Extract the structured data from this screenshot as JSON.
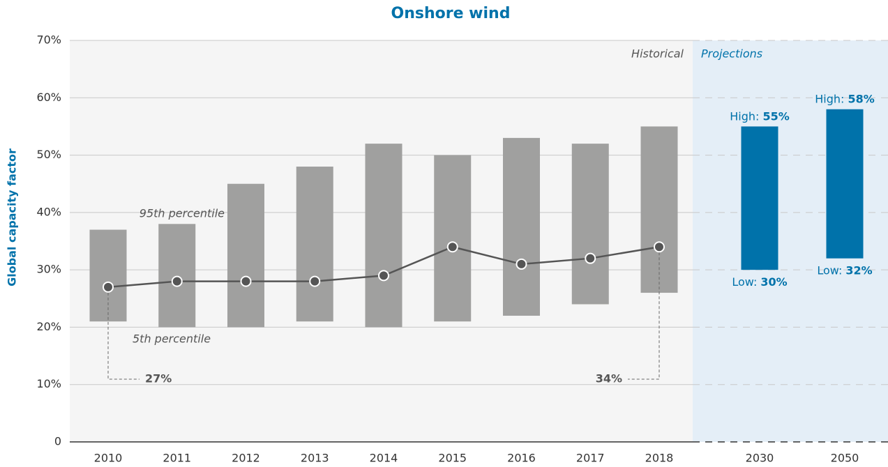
{
  "chart_data": {
    "type": "range_bar",
    "title": "Onshore wind",
    "y_label": "Global capacity factor",
    "ylim": [
      0,
      70
    ],
    "yticks": [
      0,
      {
        "value": 10,
        "label": "10%"
      },
      {
        "value": 20,
        "label": "20%"
      },
      {
        "value": 30,
        "label": "30%"
      },
      {
        "value": 40,
        "label": "40%"
      },
      {
        "value": 50,
        "label": "50%"
      },
      {
        "value": 60,
        "label": "60%"
      },
      {
        "value": 70,
        "label": "70%"
      }
    ],
    "grid": true,
    "historical": {
      "label": "Historical",
      "categories": [
        "2010",
        "2011",
        "2012",
        "2013",
        "2014",
        "2015",
        "2016",
        "2017",
        "2018"
      ],
      "low": [
        21,
        20,
        20,
        21,
        20,
        21,
        22,
        24,
        26
      ],
      "high": [
        37,
        38,
        45,
        48,
        52,
        50,
        53,
        52,
        55
      ],
      "average": [
        27,
        28,
        28,
        28,
        29,
        34,
        31,
        32,
        34
      ],
      "average_labels": [
        "27%",
        null,
        null,
        null,
        null,
        null,
        null,
        null,
        "34%"
      ],
      "low_label": "5th percentile",
      "high_label": "95th percentile",
      "bar_color": "#a0a09f",
      "line_color": "#555555"
    },
    "projections": {
      "label": "Projections",
      "categories": [
        "2030",
        "2050"
      ],
      "low": [
        30,
        32
      ],
      "high": [
        55,
        58
      ],
      "low_labels": [
        "30%",
        "32%"
      ],
      "high_labels": [
        "55%",
        "58%"
      ],
      "low_prefix": "Low:",
      "high_prefix": "High:",
      "color": "#0072aa"
    }
  }
}
